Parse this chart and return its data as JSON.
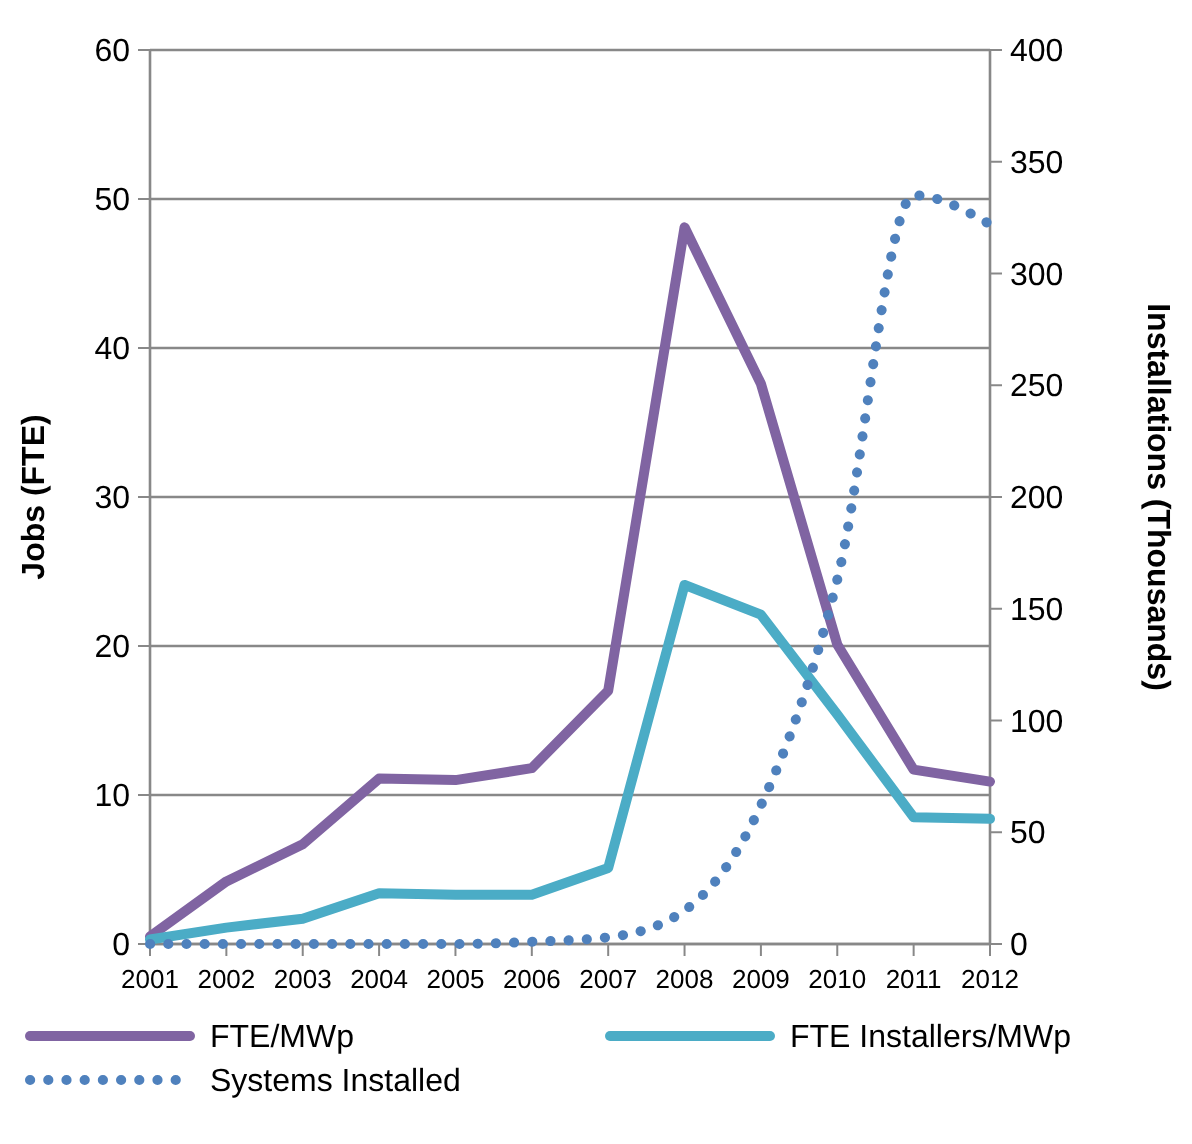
{
  "chart_data": {
    "type": "line",
    "ylabel": "Jobs (FTE)",
    "y2label": "Installations (Thousands)",
    "categories": [
      "2001",
      "2002",
      "2003",
      "2004",
      "2005",
      "2006",
      "2007",
      "2008",
      "2009",
      "2010",
      "2011",
      "2012"
    ],
    "ylim": [
      0,
      60
    ],
    "yticks": [
      0,
      10,
      20,
      30,
      40,
      50,
      60
    ],
    "y2lim": [
      0,
      400
    ],
    "y2ticks": [
      0,
      50,
      100,
      150,
      200,
      250,
      300,
      350,
      400
    ],
    "grid": "y",
    "legend": "bottom",
    "marker": "none",
    "series": [
      {
        "name": "FTE/MWp",
        "color": "#8064a2",
        "values": [
          0.5,
          4.2,
          6.7,
          11.1,
          11,
          11.8,
          17,
          48.1,
          37.6,
          20.1,
          11.7,
          10.9
        ]
      },
      {
        "name": "FTE Installers/MWp",
        "color": "#4bacc6",
        "values": [
          0.3,
          1.1,
          1.7,
          3.4,
          3.3,
          3.3,
          5.1,
          24.1,
          22.1,
          15.4,
          8.5,
          8.4
        ]
      },
      {
        "name": "Systems Installed",
        "color": "#4f81bd",
        "axis": "y2",
        "line_style": "dotted",
        "values": [
          0,
          0,
          0,
          0,
          0,
          1,
          3,
          15,
          62,
          163,
          335,
          322
        ]
      }
    ]
  }
}
